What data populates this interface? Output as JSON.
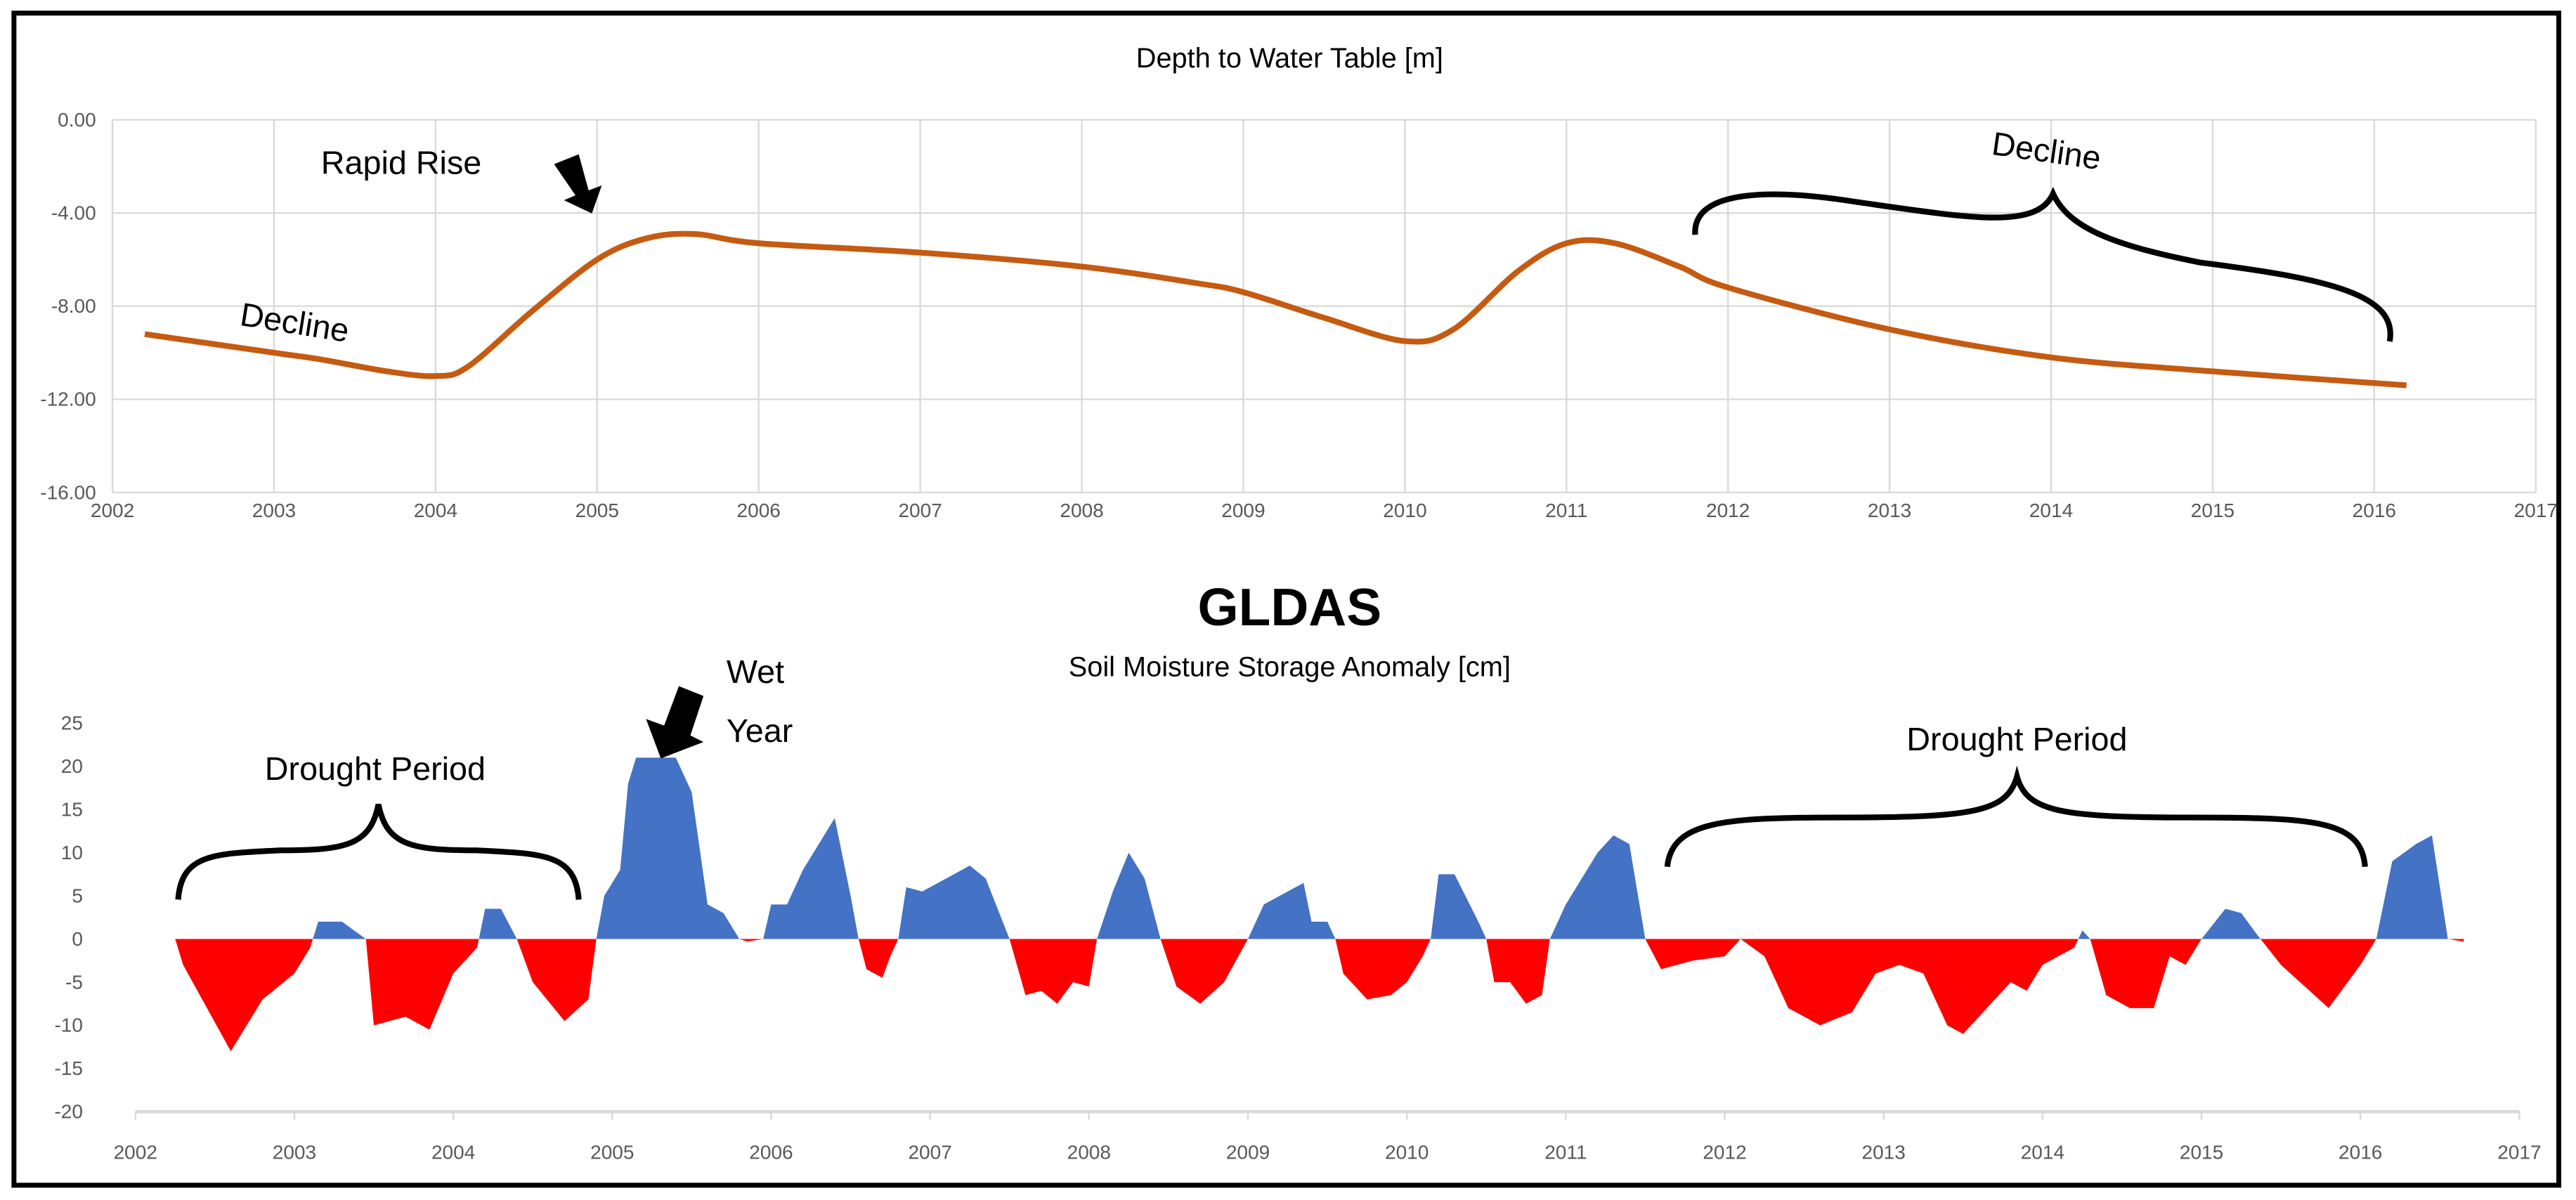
{
  "chart_data": [
    {
      "type": "line",
      "title": "Depth to Water Table [m]",
      "xlim": [
        2002,
        2017
      ],
      "ylim": [
        -16,
        0
      ],
      "xticks": [
        "2002",
        "2003",
        "2004",
        "2005",
        "2006",
        "2007",
        "2008",
        "2009",
        "2010",
        "2011",
        "2012",
        "2013",
        "2014",
        "2015",
        "2016",
        "2017"
      ],
      "yticks": [
        "0.00",
        "-4.00",
        "-8.00",
        "-12.00",
        "-16.00"
      ],
      "grid": true,
      "color": "#c55a11",
      "x": [
        2002.2,
        2003,
        2003.3,
        2003.7,
        2004,
        2004.2,
        2004.6,
        2005,
        2005.3,
        2005.6,
        2006,
        2007,
        2008,
        2008.7,
        2009,
        2009.5,
        2010,
        2010.3,
        2010.7,
        2011,
        2011.3,
        2011.7,
        2012,
        2013,
        2014,
        2015,
        2016.2
      ],
      "y": [
        -9.2,
        -10.0,
        -10.3,
        -10.8,
        -11.0,
        -10.6,
        -8.2,
        -6.0,
        -5.1,
        -4.9,
        -5.3,
        -5.7,
        -6.3,
        -7.0,
        -7.4,
        -8.5,
        -9.5,
        -9.0,
        -6.5,
        -5.3,
        -5.3,
        -6.3,
        -7.2,
        -9.0,
        -10.2,
        -10.8,
        -11.4
      ],
      "annotations": {
        "rapid_rise": "Rapid Rise",
        "decline_left": "Decline",
        "decline_right": "Decline"
      }
    },
    {
      "type": "area",
      "title": "GLDAS",
      "subtitle": "Soil Moisture Storage Anomaly [cm]",
      "xlim": [
        2002,
        2017
      ],
      "ylim": [
        -20,
        25
      ],
      "xticks": [
        "2002",
        "2003",
        "2004",
        "2005",
        "2006",
        "2007",
        "2008",
        "2009",
        "2010",
        "2011",
        "2012",
        "2013",
        "2014",
        "2015",
        "2016",
        "2017"
      ],
      "yticks": [
        "25",
        "20",
        "15",
        "10",
        "5",
        "0",
        "-5",
        "-10",
        "-15",
        "-20"
      ],
      "positive_color": "#4472c4",
      "negative_color": "#ff0000",
      "x": [
        2002.25,
        2002.3,
        2002.6,
        2002.8,
        2003.0,
        2003.1,
        2003.15,
        2003.3,
        2003.45,
        2003.5,
        2003.7,
        2003.85,
        2004.0,
        2004.15,
        2004.2,
        2004.3,
        2004.4,
        2004.5,
        2004.7,
        2004.85,
        2004.9,
        2004.95,
        2005.05,
        2005.1,
        2005.15,
        2005.4,
        2005.5,
        2005.6,
        2005.7,
        2005.8,
        2005.85,
        2005.95,
        2006.0,
        2006.1,
        2006.2,
        2006.4,
        2006.5,
        2006.55,
        2006.6,
        2006.7,
        2006.75,
        2006.8,
        2006.85,
        2006.95,
        2007.1,
        2007.25,
        2007.35,
        2007.5,
        2007.6,
        2007.7,
        2007.8,
        2007.9,
        2008.0,
        2008.05,
        2008.15,
        2008.25,
        2008.35,
        2008.45,
        2008.55,
        2008.7,
        2008.85,
        2009.0,
        2009.1,
        2009.2,
        2009.35,
        2009.4,
        2009.5,
        2009.55,
        2009.6,
        2009.75,
        2009.9,
        2010.0,
        2010.1,
        2010.15,
        2010.2,
        2010.3,
        2010.45,
        2010.5,
        2010.55,
        2010.65,
        2010.75,
        2010.85,
        2010.9,
        2011.0,
        2011.2,
        2011.3,
        2011.4,
        2011.5,
        2011.6,
        2011.7,
        2011.8,
        2012.0,
        2012.1,
        2012.25,
        2012.4,
        2012.6,
        2012.8,
        2012.95,
        2013.1,
        2013.25,
        2013.4,
        2013.5,
        2013.7,
        2013.8,
        2013.9,
        2014.0,
        2014.2,
        2014.25,
        2014.3,
        2014.4,
        2014.55,
        2014.7,
        2014.8,
        2014.9,
        2015.0,
        2015.15,
        2015.25,
        2015.35,
        2015.5,
        2015.8,
        2016.0,
        2016.1,
        2016.2,
        2016.35,
        2016.45,
        2016.55,
        2016.65
      ],
      "y": [
        0,
        -3,
        -13,
        -7,
        -4,
        -1,
        2,
        2,
        0,
        -10,
        -9,
        -10.5,
        -4,
        -1,
        3.5,
        3.5,
        0,
        -5,
        -9.5,
        -7,
        0,
        5,
        8,
        18,
        21,
        21,
        17,
        4,
        3,
        0,
        -0.3,
        0,
        4,
        4,
        8,
        14,
        5,
        0,
        -3.5,
        -4.5,
        -2,
        0,
        6,
        5.5,
        7,
        8.5,
        7,
        0,
        -6.5,
        -6,
        -7.5,
        -5,
        -5.5,
        0,
        5.5,
        10,
        7,
        0,
        -5.5,
        -7.5,
        -5,
        0,
        4,
        5,
        6.5,
        2,
        2,
        0,
        -4,
        -7,
        -6.5,
        -5,
        -2,
        0,
        7.5,
        7.5,
        2,
        0,
        -5,
        -5,
        -7.5,
        -6.5,
        0,
        4,
        10,
        12,
        11,
        0,
        -3.5,
        -3,
        -2.5,
        -2,
        0,
        -2,
        -8,
        -10,
        -8.5,
        -4,
        -3,
        -4,
        -10,
        -11,
        -7,
        -5,
        -6,
        -3,
        -1,
        1,
        0,
        -6.5,
        -8,
        -8,
        -2,
        -3,
        0,
        3.5,
        3,
        0.5,
        -3,
        -8,
        -3,
        0,
        9,
        11,
        12,
        0,
        -0.3
      ],
      "annotations": {
        "drought_left": "Drought Period",
        "wet_line1": "Wet",
        "wet_line2": "Year",
        "drought_right": "Drought Period"
      }
    }
  ]
}
